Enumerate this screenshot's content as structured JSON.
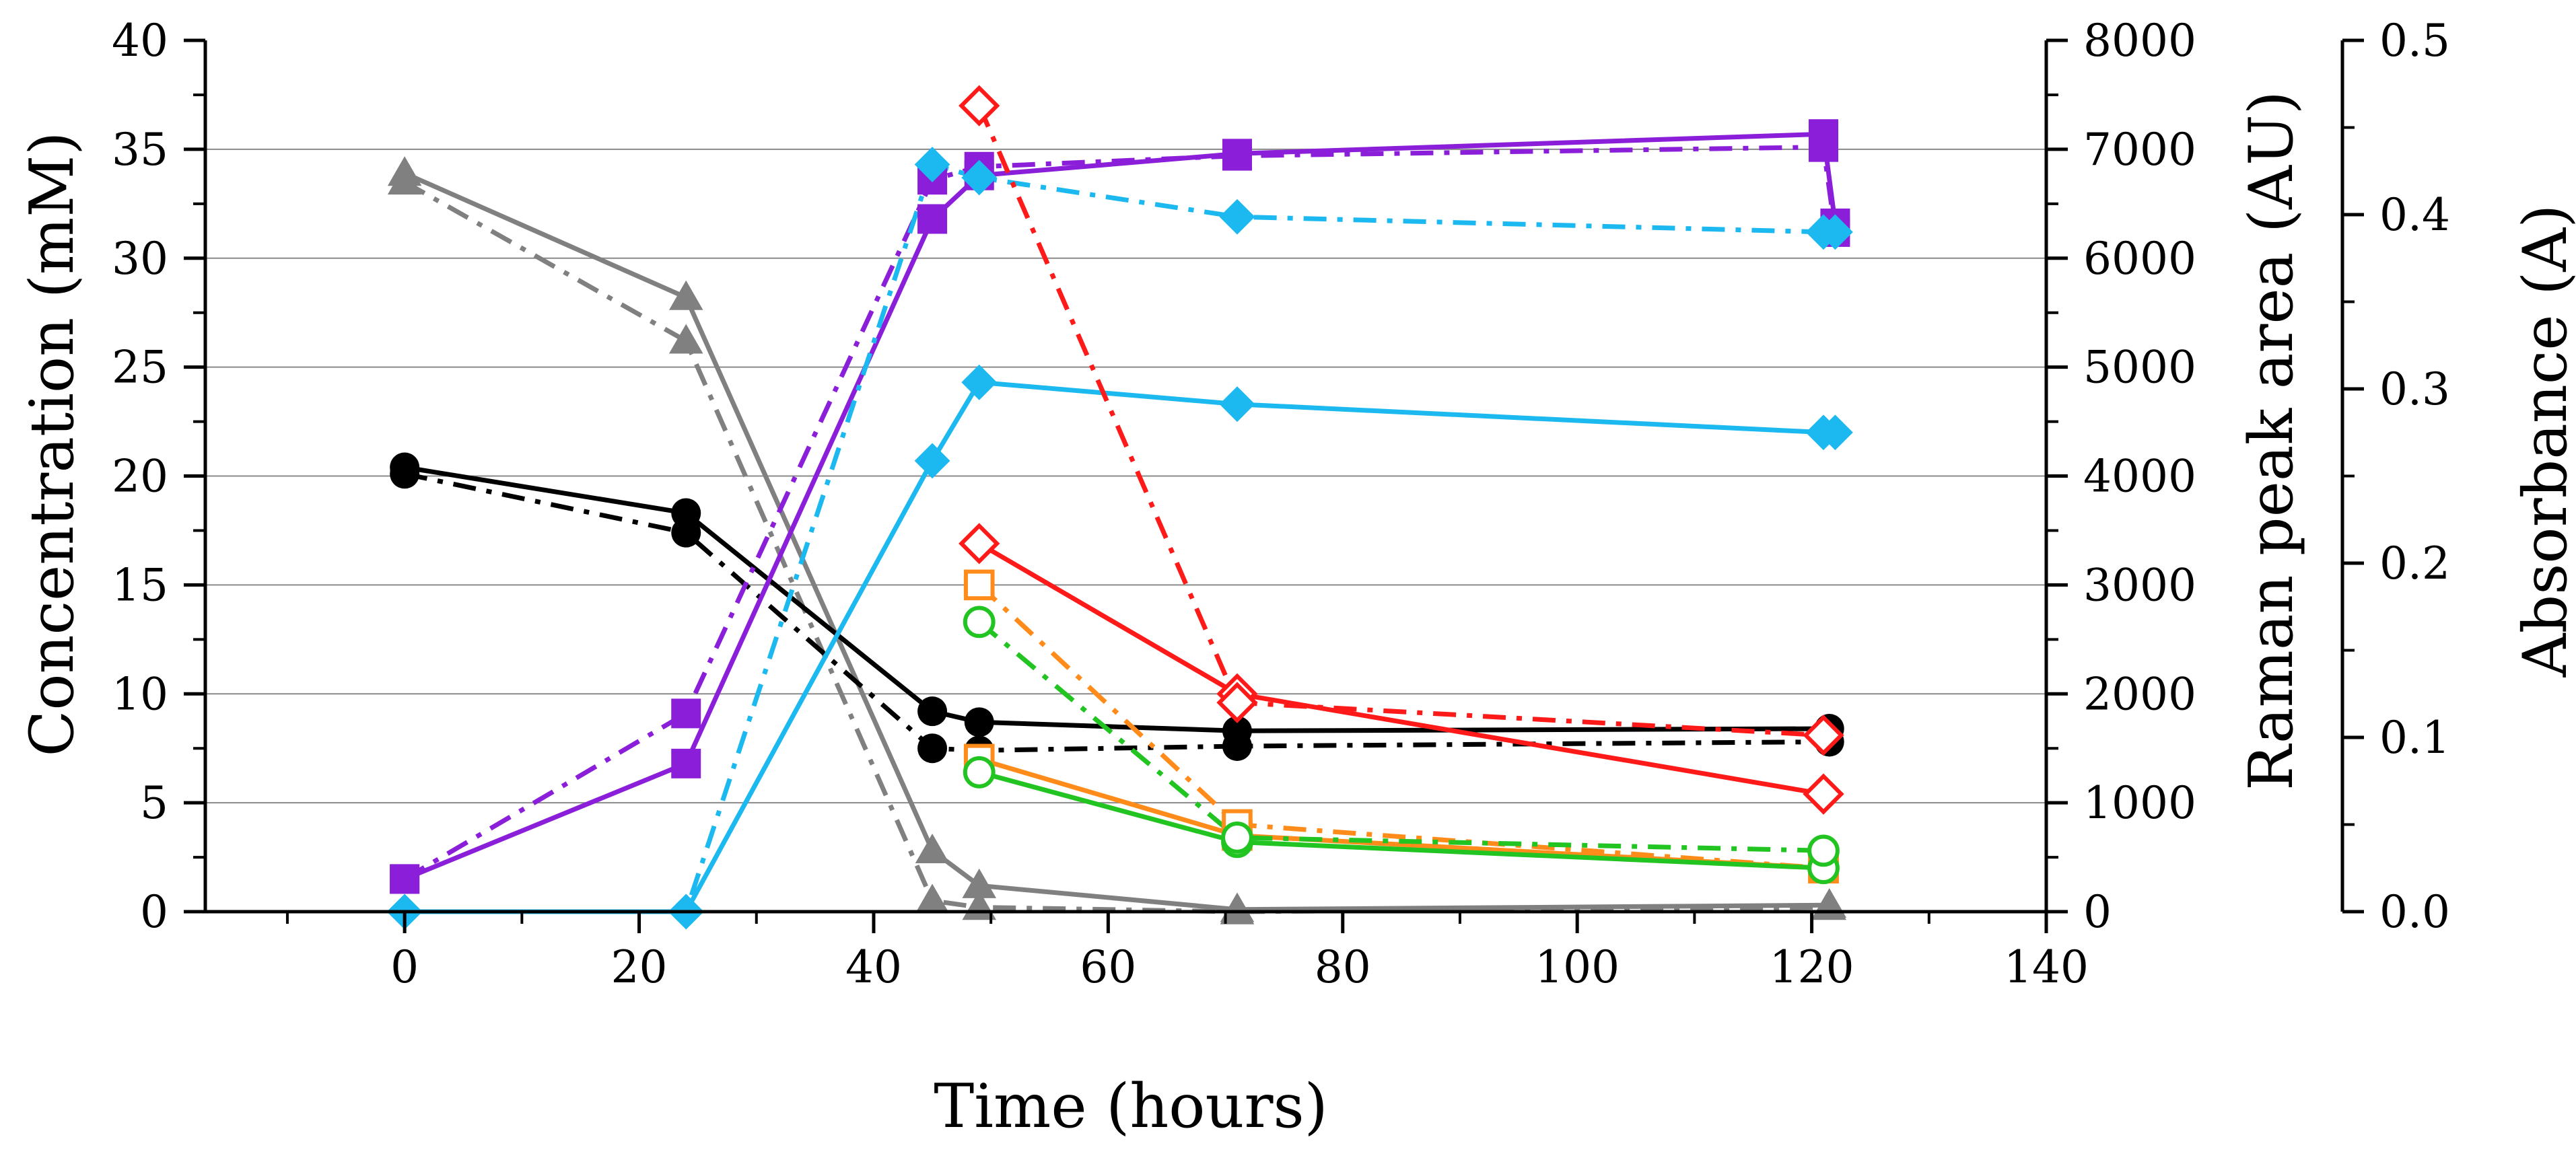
{
  "chart_data": {
    "type": "line",
    "title": "",
    "xlabel": "Time (hours)",
    "ylabel_left": "Concentration (mM)",
    "ylabel_right1": "Raman peak area (AU)",
    "ylabel_right2": "Absorbance (A)",
    "xlim": [
      -17,
      140
    ],
    "ylim_left": [
      0,
      40
    ],
    "ylim_right1": [
      0,
      8000
    ],
    "ylim_right2": [
      0,
      0.5
    ],
    "x_ticks": [
      "0",
      "20",
      "40",
      "60",
      "80",
      "100",
      "120",
      "140"
    ],
    "y_left_ticks": [
      "0",
      "5",
      "10",
      "15",
      "20",
      "25",
      "30",
      "35",
      "40"
    ],
    "y_right1_ticks": [
      "0",
      "1000",
      "2000",
      "3000",
      "4000",
      "5000",
      "6000",
      "7000",
      "8000"
    ],
    "y_right2_ticks": [
      "0.0",
      "0.1",
      "0.2",
      "0.3",
      "0.4",
      "0.5"
    ],
    "gridlines_left": [
      5,
      10,
      15,
      20,
      25,
      30,
      35
    ],
    "series": [
      {
        "name": "gray-solid",
        "color": "#808080",
        "marker": "triangle",
        "dash": "solid",
        "axis": "left",
        "x": [
          0,
          24,
          45,
          49,
          71,
          121.5
        ],
        "y": [
          33.9,
          28.2,
          2.8,
          1.2,
          0.1,
          0.3
        ]
      },
      {
        "name": "gray-dashdot",
        "color": "#808080",
        "marker": "triangle",
        "dash": "dashdot",
        "axis": "left",
        "x": [
          0,
          24,
          45,
          49,
          71,
          121.5
        ],
        "y": [
          33.5,
          26.2,
          0.5,
          0.2,
          0.0,
          0.2
        ]
      },
      {
        "name": "black-solid",
        "color": "#000000",
        "marker": "circle",
        "dash": "solid",
        "axis": "left",
        "x": [
          0,
          24,
          45,
          49,
          71,
          121.5
        ],
        "y": [
          20.4,
          18.3,
          9.2,
          8.7,
          8.3,
          8.4
        ]
      },
      {
        "name": "black-dashdot",
        "color": "#000000",
        "marker": "circle",
        "dash": "dashdot",
        "axis": "left",
        "x": [
          0,
          24,
          45,
          49,
          71,
          121.5
        ],
        "y": [
          20.1,
          17.4,
          7.5,
          7.4,
          7.6,
          7.8
        ]
      },
      {
        "name": "violet-solid",
        "color": "#8B1FD9",
        "marker": "square",
        "dash": "solid",
        "axis": "left",
        "x": [
          0,
          24,
          45,
          49,
          71,
          121,
          122
        ],
        "y": [
          1.5,
          6.8,
          31.8,
          33.8,
          34.8,
          35.7,
          31.6
        ]
      },
      {
        "name": "violet-dashdot",
        "color": "#8B1FD9",
        "marker": "square",
        "dash": "dashdot",
        "axis": "left",
        "x": [
          0,
          24,
          45,
          49,
          71,
          121,
          122
        ],
        "y": [
          1.5,
          9.1,
          33.6,
          34.2,
          34.7,
          35.1,
          31.2
        ]
      },
      {
        "name": "cyan-solid",
        "color": "#1CB8F0",
        "marker": "diamond",
        "dash": "solid",
        "axis": "left",
        "x": [
          0,
          24,
          45,
          49,
          71,
          121,
          122
        ],
        "y": [
          0,
          0,
          20.7,
          24.3,
          23.3,
          22.0,
          22.0
        ]
      },
      {
        "name": "cyan-dashdot",
        "color": "#1CB8F0",
        "marker": "diamond",
        "dash": "dashdot",
        "axis": "left",
        "x": [
          0,
          24,
          45,
          49,
          71,
          121,
          122
        ],
        "y": [
          0,
          0,
          34.3,
          33.7,
          31.9,
          31.2,
          31.2
        ]
      },
      {
        "name": "red-solid",
        "color": "#FF1A1A",
        "marker": "diamond-open",
        "dash": "solid",
        "axis": "left",
        "x": [
          49,
          71,
          121
        ],
        "y": [
          16.9,
          10.0,
          5.4
        ]
      },
      {
        "name": "red-dashdot",
        "color": "#FF1A1A",
        "marker": "diamond-open",
        "dash": "dashdot",
        "axis": "left",
        "x": [
          49,
          71,
          121
        ],
        "y": [
          37.0,
          9.6,
          8.1
        ]
      },
      {
        "name": "orange-solid",
        "color": "#FF8C1A",
        "marker": "square-open",
        "dash": "solid",
        "axis": "left",
        "x": [
          49,
          71,
          121
        ],
        "y": [
          7.0,
          3.5,
          2.0
        ]
      },
      {
        "name": "orange-dashdot",
        "color": "#FF8C1A",
        "marker": "square-open",
        "dash": "dashdot",
        "axis": "left",
        "x": [
          49,
          71,
          121
        ],
        "y": [
          15.0,
          4.0,
          2.0
        ]
      },
      {
        "name": "green-solid",
        "color": "#22C422",
        "marker": "circle-open",
        "dash": "solid",
        "axis": "left",
        "x": [
          49,
          71,
          121
        ],
        "y": [
          6.4,
          3.2,
          2.0
        ]
      },
      {
        "name": "green-dashdot",
        "color": "#22C422",
        "marker": "circle-open",
        "dash": "dashdot",
        "axis": "left",
        "x": [
          49,
          71,
          121
        ],
        "y": [
          13.3,
          3.4,
          2.8
        ]
      }
    ]
  }
}
